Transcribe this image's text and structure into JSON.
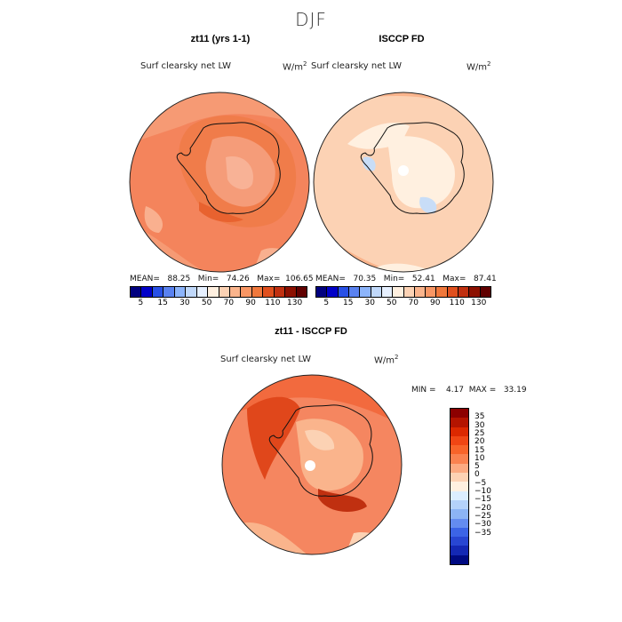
{
  "main_title": "DJF",
  "panels": {
    "left": {
      "title": "zt11 (yrs 1-1)",
      "variable": "Surf clearsky net LW",
      "unit_base": "W/m",
      "unit_exp": "2",
      "stats": "MEAN=   88.25   Min=   74.26   Max=  106.65"
    },
    "right": {
      "title": "ISCCP FD",
      "variable": "Surf clearsky net LW",
      "unit_base": "W/m",
      "unit_exp": "2",
      "stats": "MEAN=   70.35   Min=   52.41   Max=   87.41"
    },
    "diff": {
      "title": "zt11 - ISCCP FD",
      "variable": "Surf clearsky net LW",
      "unit_base": "W/m",
      "unit_exp": "2",
      "stats": "MIN =    4.17  MAX =   33.19"
    }
  },
  "colorbar_top": {
    "labels": [
      "5",
      "15",
      "30",
      "50",
      "70",
      "90",
      "110",
      "130"
    ],
    "colors": [
      "#00007f",
      "#0000c8",
      "#2850e6",
      "#5a82f0",
      "#8cb4fa",
      "#c0d8fa",
      "#e6f0ff",
      "#fff0e0",
      "#fcd2b4",
      "#fab48c",
      "#f89664",
      "#f0783c",
      "#e0501e",
      "#c03010",
      "#8c1000",
      "#600000"
    ]
  },
  "colorbar_diff": {
    "labels": [
      "35",
      "30",
      "25",
      "20",
      "15",
      "10",
      "5",
      "0",
      "−5",
      "−10",
      "−15",
      "−20",
      "−25",
      "−30",
      "−35"
    ],
    "colors": [
      "#8c0000",
      "#b41400",
      "#dc2800",
      "#f04614",
      "#f8642a",
      "#fa8250",
      "#fcaa82",
      "#fdd2b4",
      "#fff0e0",
      "#dceeff",
      "#b4d2fa",
      "#8cb4f5",
      "#648cf0",
      "#3c64e6",
      "#2846d2",
      "#1428b4",
      "#000a82"
    ]
  }
}
